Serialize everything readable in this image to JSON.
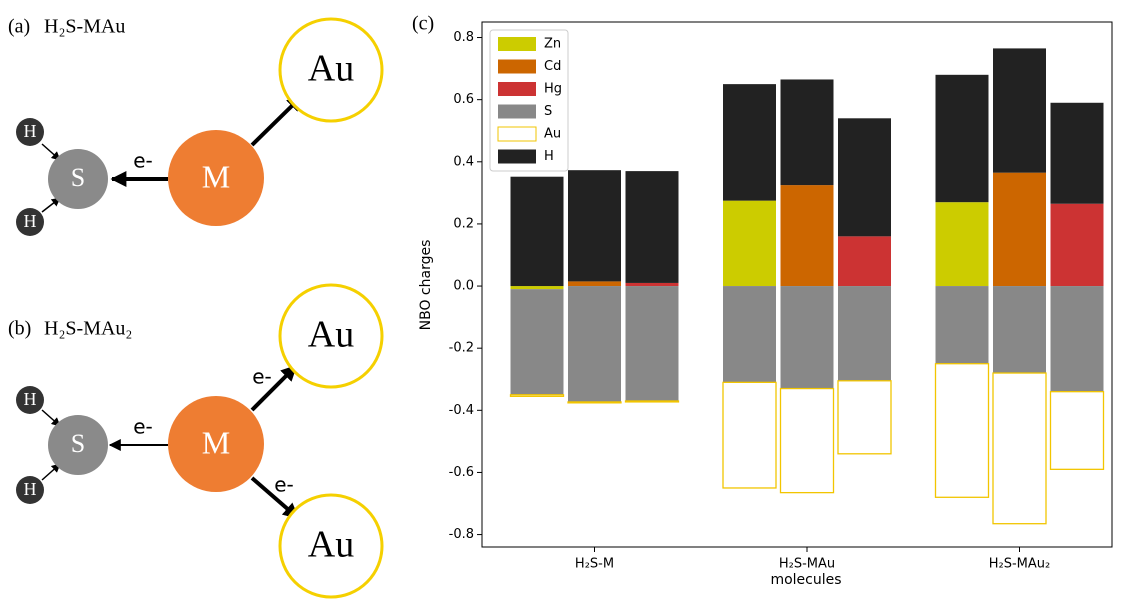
{
  "panels": [
    {
      "label": "(a)",
      "title": "H₂S-MAu",
      "atoms": [
        "H",
        "H",
        "S",
        "M",
        "Au"
      ],
      "arrow_labels": [
        "e-"
      ]
    },
    {
      "label": "(b)",
      "title": "H₂S-MAu₂",
      "atoms": [
        "H",
        "H",
        "S",
        "M",
        "Au",
        "Au"
      ],
      "arrow_labels": [
        "e-",
        "e-",
        "e-"
      ]
    }
  ],
  "chart_data": {
    "type": "bar",
    "stacked": true,
    "panel_label": "(c)",
    "x_label": "molecules",
    "y_label": "NBO charges",
    "categories": [
      null,
      "H₂S-M",
      null,
      null,
      "H₂S-MAu",
      null,
      null,
      "H₂S-MAu₂",
      null
    ],
    "series": [
      {
        "name": "Zn",
        "color": "#cccc00",
        "values": [
          -0.01,
          null,
          null,
          0.275,
          null,
          null,
          0.27,
          null,
          null
        ]
      },
      {
        "name": "Cd",
        "color": "#cc6600",
        "values": [
          null,
          0.015,
          null,
          null,
          0.325,
          null,
          null,
          0.365,
          null
        ]
      },
      {
        "name": "Hg",
        "color": "#cc3333",
        "values": [
          null,
          null,
          0.01,
          null,
          null,
          0.16,
          null,
          null,
          0.265
        ]
      },
      {
        "name": "S",
        "color": "#888888",
        "values": [
          -0.34,
          -0.373,
          -0.37,
          -0.31,
          -0.33,
          -0.305,
          -0.25,
          -0.28,
          -0.34
        ]
      },
      {
        "name": "Au",
        "color": "#f2c500",
        "hollow": true,
        "values": [
          -0.005,
          -0.003,
          -0.003,
          -0.34,
          -0.335,
          -0.235,
          -0.43,
          -0.485,
          -0.25
        ]
      },
      {
        "name": "H",
        "color": "#222222",
        "values": [
          0.352,
          0.358,
          0.36,
          0.375,
          0.34,
          0.38,
          0.41,
          0.4,
          0.325
        ]
      }
    ],
    "ylim": [
      -0.84,
      0.85
    ],
    "yticks": [
      -0.8,
      -0.6,
      -0.4,
      -0.2,
      {
        "value": 0,
        "label": "0.0"
      },
      0.2,
      0.4,
      0.6,
      0.8
    ],
    "legend": "upper left"
  }
}
